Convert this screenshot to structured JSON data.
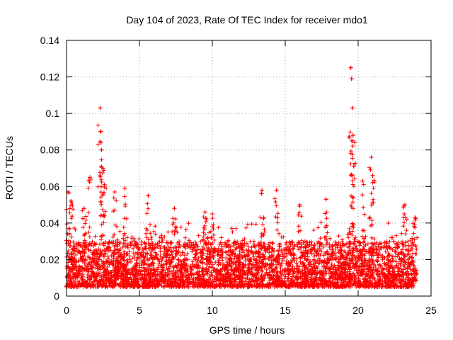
{
  "chart_data": {
    "type": "scatter",
    "title": "Day 104 of 2023, Rate Of TEC Index for receiver mdo1",
    "xlabel": "GPS time / hours",
    "ylabel": "ROTI / TECUs",
    "xlim": [
      0,
      25
    ],
    "ylim": [
      0,
      0.14
    ],
    "xticks": [
      "0",
      "5",
      "10",
      "15",
      "20",
      "25"
    ],
    "yticks": [
      "0",
      "0.02",
      "0.04",
      "0.06",
      "0.08",
      "0.1",
      "0.12",
      "0.14"
    ],
    "grid": true,
    "marker": "+",
    "series": [
      {
        "name": "ROTI",
        "color": "#ff0000",
        "x_range": [
          0,
          24
        ],
        "typical_range": [
          0.005,
          0.03
        ],
        "peaks": [
          {
            "x": 0.1,
            "y": 0.057
          },
          {
            "x": 0.3,
            "y": 0.052
          },
          {
            "x": 1.2,
            "y": 0.048
          },
          {
            "x": 1.6,
            "y": 0.065
          },
          {
            "x": 2.3,
            "y": 0.103
          },
          {
            "x": 2.35,
            "y": 0.09
          },
          {
            "x": 2.4,
            "y": 0.08
          },
          {
            "x": 2.5,
            "y": 0.07
          },
          {
            "x": 2.6,
            "y": 0.061
          },
          {
            "x": 3.3,
            "y": 0.057
          },
          {
            "x": 4.0,
            "y": 0.059
          },
          {
            "x": 5.6,
            "y": 0.055
          },
          {
            "x": 7.4,
            "y": 0.048
          },
          {
            "x": 9.5,
            "y": 0.046
          },
          {
            "x": 10.0,
            "y": 0.045
          },
          {
            "x": 13.4,
            "y": 0.058
          },
          {
            "x": 14.4,
            "y": 0.058
          },
          {
            "x": 16.0,
            "y": 0.05
          },
          {
            "x": 17.8,
            "y": 0.053
          },
          {
            "x": 19.5,
            "y": 0.125
          },
          {
            "x": 19.55,
            "y": 0.119
          },
          {
            "x": 19.6,
            "y": 0.103
          },
          {
            "x": 19.65,
            "y": 0.088
          },
          {
            "x": 19.7,
            "y": 0.071
          },
          {
            "x": 20.3,
            "y": 0.063
          },
          {
            "x": 20.9,
            "y": 0.076
          },
          {
            "x": 21.0,
            "y": 0.066
          },
          {
            "x": 23.2,
            "y": 0.05
          },
          {
            "x": 23.9,
            "y": 0.043
          }
        ]
      }
    ]
  }
}
